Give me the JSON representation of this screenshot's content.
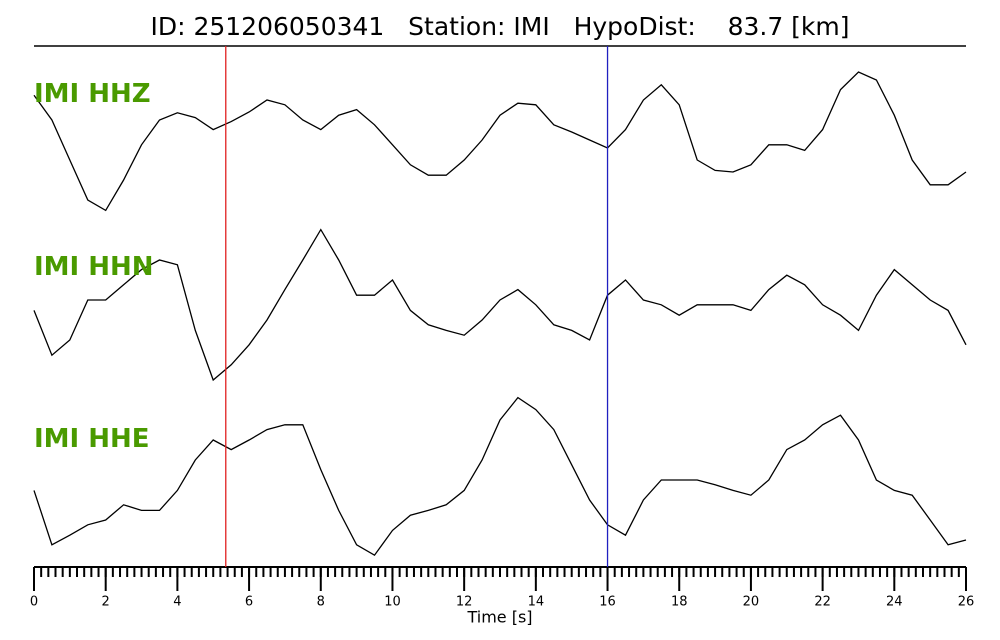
{
  "chart_data": {
    "type": "seismogram",
    "title": "ID: 251206050341   Station: IMI   HypoDist:    83.7 [km]",
    "xlabel": "Time [s]",
    "xlim": [
      0,
      26
    ],
    "xticks": [
      0,
      2,
      4,
      6,
      8,
      10,
      12,
      14,
      16,
      18,
      20,
      22,
      24,
      26
    ],
    "xminorticks": [
      0,
      0.2,
      0.4,
      0.6,
      0.8,
      1,
      1.2,
      1.4,
      1.6,
      1.8,
      2,
      2.2,
      2.4,
      2.6,
      2.8,
      3,
      3.2,
      3.4,
      3.6,
      3.8,
      4,
      4.2,
      4.4,
      4.6,
      4.8,
      5,
      5.2,
      5.4,
      5.6,
      5.8,
      6,
      6.2,
      6.4,
      6.6,
      6.8,
      7,
      7.2,
      7.4,
      7.6,
      7.8,
      8,
      8.2,
      8.4,
      8.6,
      8.8,
      9,
      9.2,
      9.4,
      9.6,
      9.8,
      10,
      10.2,
      10.4,
      10.6,
      10.8,
      11,
      11.2,
      11.4,
      11.6,
      11.8,
      12,
      12.2,
      12.4,
      12.6,
      12.8,
      13,
      13.2,
      13.4,
      13.6,
      13.8,
      14,
      14.2,
      14.4,
      14.6,
      14.8,
      15,
      15.2,
      15.4,
      15.6,
      15.8,
      16,
      16.2,
      16.4,
      16.6,
      16.8,
      17,
      17.2,
      17.4,
      17.6,
      17.8,
      18,
      18.2,
      18.4,
      18.6,
      18.8,
      19,
      19.2,
      19.4,
      19.6,
      19.8,
      20,
      20.2,
      20.4,
      20.6,
      20.8,
      21,
      21.2,
      21.4,
      21.6,
      21.8,
      22,
      22.2,
      22.4,
      22.6,
      22.8,
      23,
      23.2,
      23.4,
      23.6,
      23.8,
      24,
      24.2,
      24.4,
      24.6,
      24.8,
      25,
      25.2,
      25.4,
      25.6,
      25.8,
      26
    ],
    "ylim": [
      -1.1,
      1.1
    ],
    "label_color": "#4a9a00",
    "picks": [
      {
        "time": 5.35,
        "color": "#e02020"
      },
      {
        "time": 16.0,
        "color": "#2020c0"
      }
    ],
    "x": [
      0,
      0.5,
      1,
      1.5,
      2,
      2.5,
      3,
      3.5,
      4,
      4.5,
      5,
      5.5,
      6,
      6.5,
      7,
      7.5,
      8,
      8.5,
      9,
      9.5,
      10,
      10.5,
      11,
      11.5,
      12,
      12.5,
      13,
      13.5,
      14,
      14.5,
      15,
      15.5,
      16,
      16.5,
      17,
      17.5,
      18,
      18.5,
      19,
      19.5,
      20,
      20.5,
      21,
      21.5,
      22,
      22.5,
      23,
      23.5,
      24,
      24.5,
      25,
      25.5,
      26
    ],
    "series": [
      {
        "name": "IMI HHZ",
        "color": "#000000",
        "values": [
          0.56,
          0.25,
          -0.25,
          -0.75,
          -0.88,
          -0.5,
          -0.06,
          0.25,
          0.34,
          0.28,
          0.13,
          0.23,
          0.35,
          0.5,
          0.44,
          0.25,
          0.13,
          0.31,
          0.38,
          0.19,
          -0.06,
          -0.31,
          -0.44,
          -0.44,
          -0.25,
          0,
          0.31,
          0.46,
          0.44,
          0.19,
          0.1,
          0,
          -0.1,
          0.13,
          0.5,
          0.69,
          0.44,
          -0.25,
          -0.38,
          -0.4,
          -0.31,
          -0.06,
          -0.06,
          -0.13,
          0.13,
          0.63,
          0.85,
          0.75,
          0.31,
          -0.25,
          -0.56,
          -0.56,
          -0.4
        ]
      },
      {
        "name": "IMI HHN",
        "color": "#000000",
        "values": [
          -0.13,
          -0.69,
          -0.5,
          0,
          0,
          0.19,
          0.38,
          0.5,
          0.44,
          -0.38,
          -1,
          -0.81,
          -0.56,
          -0.25,
          0.13,
          0.5,
          0.88,
          0.5,
          0.06,
          0.06,
          0.25,
          -0.13,
          -0.31,
          -0.38,
          -0.44,
          -0.25,
          0,
          0.13,
          -0.06,
          -0.31,
          -0.38,
          -0.5,
          0.06,
          0.25,
          0,
          -0.06,
          -0.19,
          -0.06,
          -0.06,
          -0.06,
          -0.13,
          0.13,
          0.31,
          0.19,
          -0.06,
          -0.19,
          -0.38,
          0.06,
          0.38,
          0.19,
          0,
          -0.13,
          -0.56
        ]
      },
      {
        "name": "IMI HHE",
        "color": "#000000",
        "values": [
          -0.13,
          -0.81,
          -0.69,
          -0.56,
          -0.5,
          -0.31,
          -0.38,
          -0.38,
          -0.13,
          0.25,
          0.5,
          0.38,
          0.5,
          0.63,
          0.69,
          0.69,
          0.13,
          -0.38,
          -0.81,
          -0.94,
          -0.63,
          -0.44,
          -0.38,
          -0.31,
          -0.13,
          0.25,
          0.75,
          1.03,
          0.88,
          0.63,
          0.19,
          -0.25,
          -0.56,
          -0.69,
          -0.25,
          0,
          0,
          0,
          -0.06,
          -0.13,
          -0.19,
          0,
          0.38,
          0.5,
          0.69,
          0.81,
          0.5,
          0,
          -0.13,
          -0.19,
          -0.5,
          -0.81,
          -0.75
        ]
      }
    ]
  }
}
